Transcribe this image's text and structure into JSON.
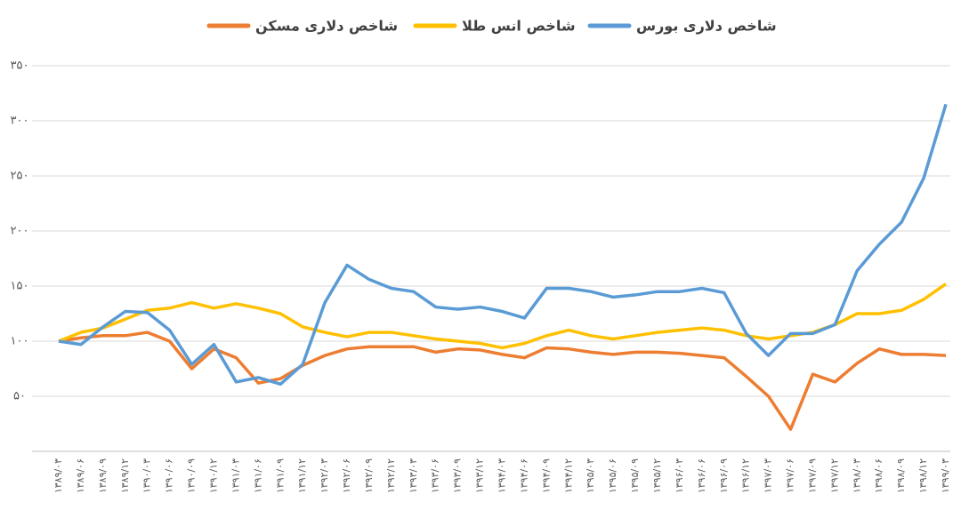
{
  "chart_data": {
    "type": "line",
    "categories": [
      "۱۳۸۹/۰۳",
      "۱۳۸۹/۰۶",
      "۱۳۸۹/۰۹",
      "۱۳۸۹/۱۲",
      "۱۳۹۰/۰۳",
      "۱۳۹۰/۰۶",
      "۱۳۹۰/۰۹",
      "۱۳۹۰/۱۲",
      "۱۳۹۱/۰۳",
      "۱۳۹۱/۰۶",
      "۱۳۹۱/۰۹",
      "۱۳۹۱/۱۲",
      "۱۳۹۲/۰۳",
      "۱۳۹۲/۰۶",
      "۱۳۹۲/۰۹",
      "۱۳۹۲/۱۲",
      "۱۳۹۳/۰۳",
      "۱۳۹۳/۰۶",
      "۱۳۹۳/۰۹",
      "۱۳۹۳/۱۲",
      "۱۳۹۴/۰۳",
      "۱۳۹۴/۰۶",
      "۱۳۹۴/۰۹",
      "۱۳۹۴/۱۲",
      "۱۳۹۵/۰۳",
      "۱۳۹۵/۰۶",
      "۱۳۹۵/۰۹",
      "۱۳۹۵/۱۲",
      "۱۳۹۶/۰۳",
      "۱۳۹۶/۰۶",
      "۱۳۹۶/۰۹",
      "۱۳۹۶/۱۲",
      "۱۳۹۷/۰۳",
      "۱۳۹۷/۰۶",
      "۱۳۹۷/۰۹",
      "۱۳۹۷/۱۲",
      "۱۳۹۸/۰۳",
      "۱۳۹۸/۰۶",
      "۱۳۹۸/۰۹",
      "۱۳۹۸/۱۲",
      "۱۳۹۹/۰۳"
    ],
    "series": [
      {
        "name": "شاخص دلاری مسکن",
        "color": "#ed7d31",
        "values": [
          100,
          103,
          105,
          105,
          108,
          100,
          75,
          93,
          85,
          62,
          66,
          78,
          87,
          93,
          95,
          95,
          95,
          90,
          93,
          92,
          88,
          85,
          94,
          93,
          90,
          88,
          90,
          90,
          89,
          87,
          85,
          68,
          50,
          20,
          70,
          63,
          80,
          93,
          88,
          88,
          87
        ]
      },
      {
        "name": "شاخص انس طلا",
        "color": "#ffc000",
        "values": [
          100,
          108,
          112,
          120,
          128,
          130,
          135,
          130,
          134,
          130,
          125,
          113,
          108,
          104,
          108,
          108,
          105,
          102,
          100,
          98,
          94,
          98,
          105,
          110,
          105,
          102,
          105,
          108,
          110,
          112,
          110,
          105,
          102,
          105,
          108,
          115,
          125,
          125,
          128,
          138,
          152
        ]
      },
      {
        "name": "شاخص دلاری بورس",
        "color": "#5b9bd5",
        "values": [
          100,
          97,
          113,
          127,
          126,
          110,
          79,
          97,
          63,
          67,
          61,
          79,
          135,
          169,
          156,
          148,
          145,
          131,
          129,
          131,
          127,
          121,
          148,
          148,
          145,
          140,
          142,
          145,
          145,
          148,
          144,
          107,
          87,
          107,
          107,
          115,
          164,
          188,
          208,
          248,
          315
        ]
      }
    ],
    "ylim": [
      0,
      350
    ],
    "yticks": [
      {
        "value": 50,
        "label": "۵۰"
      },
      {
        "value": 100,
        "label": "۱۰۰"
      },
      {
        "value": 150,
        "label": "۱۵۰"
      },
      {
        "value": 200,
        "label": "۲۰۰"
      },
      {
        "value": 250,
        "label": "۲۵۰"
      },
      {
        "value": 300,
        "label": "۳۰۰"
      },
      {
        "value": 350,
        "label": "۳۵۰"
      }
    ],
    "grid": true
  }
}
